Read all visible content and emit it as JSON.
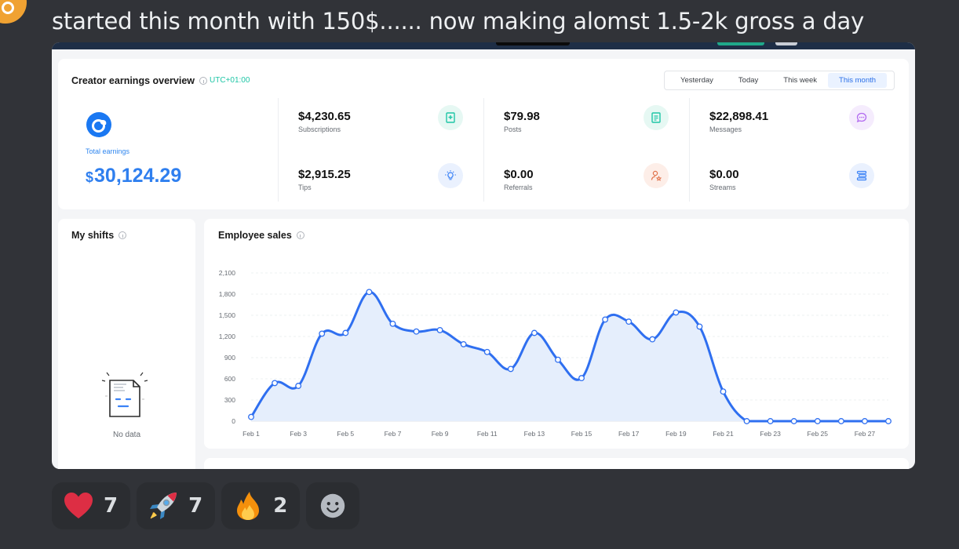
{
  "message": {
    "text": "started this month with 150$...... now making alomst 1.5-2k gross a day"
  },
  "dashboard": {
    "overview": {
      "title": "Creator earnings overview",
      "timezone": "UTC+01:00",
      "tabs": [
        {
          "label": "Yesterday",
          "active": false
        },
        {
          "label": "Today",
          "active": false
        },
        {
          "label": "This week",
          "active": false
        },
        {
          "label": "This month",
          "active": true
        }
      ],
      "total_label": "Total earnings",
      "total_currency": "$",
      "total_amount": "30,124.29",
      "metrics": [
        {
          "value": "$4,230.65",
          "label": "Subscriptions",
          "icon": "bookmark-plus-icon",
          "color": "#1fc6a6",
          "bg": "#e6f8f3"
        },
        {
          "value": "$79.98",
          "label": "Posts",
          "icon": "document-icon",
          "color": "#1fc6a6",
          "bg": "#e6f8f3"
        },
        {
          "value": "$22,898.41",
          "label": "Messages",
          "icon": "chat-bubble-icon",
          "color": "#b36bf0",
          "bg": "#f5ecfd"
        },
        {
          "value": "$2,915.25",
          "label": "Tips",
          "icon": "lightbulb-icon",
          "color": "#3b82f6",
          "bg": "#eaf1fe"
        },
        {
          "value": "$0.00",
          "label": "Referrals",
          "icon": "user-star-icon",
          "color": "#e0714a",
          "bg": "#fdeee8"
        },
        {
          "value": "$0.00",
          "label": "Streams",
          "icon": "stack-icon",
          "color": "#3b82f6",
          "bg": "#eaf1fe"
        }
      ]
    },
    "shifts": {
      "title": "My shifts",
      "empty_text": "No data"
    },
    "sales": {
      "title": "Employee sales"
    }
  },
  "chart_data": {
    "type": "area",
    "title": "Employee sales",
    "xlabel": "",
    "ylabel": "",
    "ylim": [
      0,
      2100
    ],
    "yticks": [
      0,
      300,
      600,
      900,
      1200,
      1500,
      1800,
      2100
    ],
    "ytick_labels": [
      "0",
      "300",
      "600",
      "900",
      "1,200",
      "1,500",
      "1,800",
      "2,100"
    ],
    "xtick_labels": [
      "Feb 1",
      "Feb 3",
      "Feb 5",
      "Feb 7",
      "Feb 9",
      "Feb 11",
      "Feb 13",
      "Feb 15",
      "Feb 17",
      "Feb 19",
      "Feb 21",
      "Feb 23",
      "Feb 25",
      "Feb 27"
    ],
    "x": [
      "Feb 1",
      "Feb 2",
      "Feb 3",
      "Feb 4",
      "Feb 5",
      "Feb 6",
      "Feb 7",
      "Feb 8",
      "Feb 9",
      "Feb 10",
      "Feb 11",
      "Feb 12",
      "Feb 13",
      "Feb 14",
      "Feb 15",
      "Feb 16",
      "Feb 17",
      "Feb 18",
      "Feb 19",
      "Feb 20",
      "Feb 21",
      "Feb 22",
      "Feb 23",
      "Feb 24",
      "Feb 25",
      "Feb 26",
      "Feb 27",
      "Feb 28"
    ],
    "values": [
      60,
      540,
      500,
      1240,
      1250,
      1830,
      1380,
      1270,
      1290,
      1090,
      980,
      740,
      1250,
      870,
      610,
      1440,
      1410,
      1160,
      1540,
      1340,
      420,
      0,
      0,
      0,
      0,
      0,
      0,
      0
    ],
    "grid": true,
    "line_color": "#2f6ff0",
    "fill_color": "#e5eefc"
  },
  "reactions": [
    {
      "emoji": "heart",
      "count": "7"
    },
    {
      "emoji": "rocket",
      "count": "7"
    },
    {
      "emoji": "fire",
      "count": "2"
    }
  ]
}
